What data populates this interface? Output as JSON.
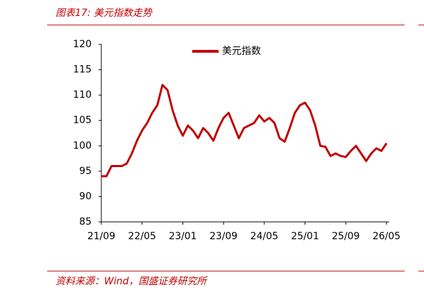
{
  "title": "图表17:  美元指数走势",
  "source": "资料来源：Wind，国盛证券研究所",
  "chart_data": {
    "type": "line",
    "categories": [
      "21/09",
      null,
      null,
      null,
      null,
      null,
      null,
      null,
      "22/05",
      null,
      null,
      null,
      null,
      null,
      null,
      null,
      "23/01",
      null,
      null,
      null,
      null,
      null,
      null,
      null,
      "23/09",
      null,
      null,
      null,
      null,
      null,
      null,
      null,
      "24/05",
      null,
      null,
      null,
      null,
      null,
      null,
      null,
      "25/01",
      null,
      null,
      null,
      null,
      null,
      null,
      null,
      "25/09",
      null,
      null,
      null,
      null,
      null,
      null,
      null,
      "26/05"
    ],
    "series": [
      {
        "name": "美元指数",
        "color": "#c00000",
        "values": [
          94,
          94,
          96,
          96,
          96,
          96.5,
          98.5,
          101,
          103,
          104.5,
          106.5,
          108,
          112,
          111,
          107,
          104,
          102,
          104,
          103,
          101.5,
          103.5,
          102.5,
          101,
          103.5,
          105.5,
          106.5,
          104,
          101.5,
          103.5,
          104,
          104.5,
          106,
          104.8,
          105.5,
          104.5,
          101.5,
          100.8,
          103.5,
          106.5,
          108,
          108.5,
          107,
          104,
          100,
          99.8,
          98,
          98.5,
          98,
          97.8,
          99,
          100,
          98.5,
          97,
          98.5,
          99.5,
          99,
          100.5
        ]
      }
    ],
    "ylim": [
      85,
      120
    ],
    "yticks": [
      85,
      90,
      95,
      100,
      105,
      110,
      115,
      120
    ],
    "legend": "top"
  }
}
